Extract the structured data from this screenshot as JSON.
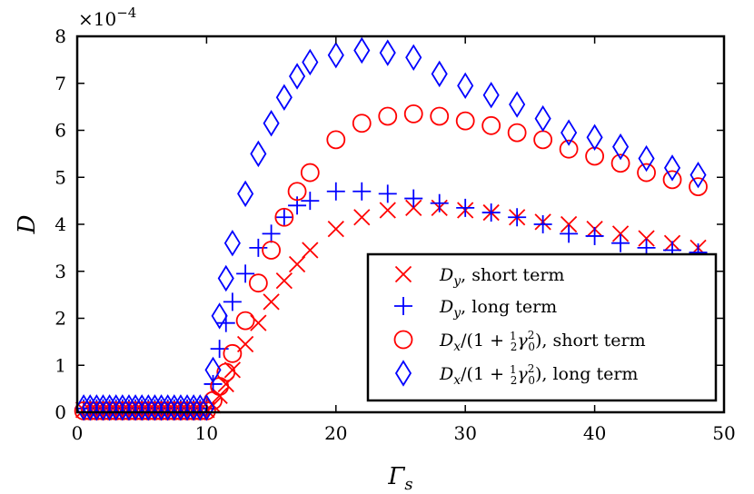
{
  "chart_data": {
    "type": "scatter",
    "title": "",
    "xlabel": "Γ",
    "xlabel_sub": "s",
    "ylabel": "D",
    "xlim": [
      0,
      50
    ],
    "ylim": [
      0,
      8
    ],
    "x_ticks": [
      "0",
      "10",
      "20",
      "30",
      "40",
      "50"
    ],
    "y_ticks": [
      "0",
      "1",
      "2",
      "3",
      "4",
      "5",
      "6",
      "7",
      "8"
    ],
    "y_multiplier": "×10",
    "y_multiplier_exp": "−4",
    "legend_position": "lower-right",
    "series": [
      {
        "name": "D_y, short term",
        "marker": "x",
        "color": "#ff0000",
        "x": [
          0.5,
          1,
          1.5,
          2,
          2.5,
          3,
          3.5,
          4,
          4.5,
          5,
          5.5,
          6,
          6.5,
          7,
          7.5,
          8,
          8.5,
          9,
          9.5,
          10,
          10.5,
          11,
          11.5,
          12,
          13,
          14,
          15,
          16,
          17,
          18,
          20,
          22,
          24,
          26,
          28,
          30,
          32,
          34,
          36,
          38,
          40,
          42,
          44,
          46,
          48
        ],
        "y": [
          0.05,
          0.05,
          0.05,
          0.05,
          0.05,
          0.05,
          0.05,
          0.05,
          0.05,
          0.05,
          0.05,
          0.05,
          0.05,
          0.05,
          0.05,
          0.05,
          0.05,
          0.05,
          0.05,
          0.05,
          0.15,
          0.35,
          0.6,
          0.9,
          1.45,
          1.9,
          2.35,
          2.8,
          3.15,
          3.45,
          3.9,
          4.15,
          4.3,
          4.35,
          4.35,
          4.3,
          4.25,
          4.15,
          4.05,
          4.0,
          3.9,
          3.8,
          3.7,
          3.6,
          3.5
        ]
      },
      {
        "name": "D_y, long term",
        "marker": "+",
        "color": "#0000ff",
        "x": [
          0.5,
          1,
          1.5,
          2,
          2.5,
          3,
          3.5,
          4,
          4.5,
          5,
          5.5,
          6,
          6.5,
          7,
          7.5,
          8,
          8.5,
          9,
          9.5,
          10,
          10.5,
          11,
          11.5,
          12,
          13,
          14,
          15,
          16,
          17,
          18,
          20,
          22,
          24,
          26,
          28,
          30,
          32,
          34,
          36,
          38,
          40,
          42,
          44,
          46,
          48
        ],
        "y": [
          0.08,
          0.08,
          0.08,
          0.08,
          0.08,
          0.08,
          0.08,
          0.08,
          0.08,
          0.08,
          0.08,
          0.08,
          0.08,
          0.08,
          0.08,
          0.08,
          0.08,
          0.08,
          0.08,
          0.08,
          0.6,
          1.35,
          1.9,
          2.35,
          2.95,
          3.5,
          3.8,
          4.15,
          4.4,
          4.5,
          4.7,
          4.7,
          4.65,
          4.55,
          4.45,
          4.35,
          4.25,
          4.15,
          4.0,
          3.8,
          3.75,
          3.6,
          3.5,
          3.45,
          3.4
        ]
      },
      {
        "name": "D_x/(1+½γ₀²), short term",
        "marker": "o",
        "color": "#ff0000",
        "x": [
          0.5,
          1,
          1.5,
          2,
          2.5,
          3,
          3.5,
          4,
          4.5,
          5,
          5.5,
          6,
          6.5,
          7,
          7.5,
          8,
          8.5,
          9,
          9.5,
          10,
          10.5,
          11,
          11.5,
          12,
          13,
          14,
          15,
          16,
          17,
          18,
          20,
          22,
          24,
          26,
          28,
          30,
          32,
          34,
          36,
          38,
          40,
          42,
          44,
          46,
          48
        ],
        "y": [
          0.03,
          0.03,
          0.03,
          0.03,
          0.03,
          0.03,
          0.03,
          0.03,
          0.03,
          0.03,
          0.03,
          0.03,
          0.03,
          0.03,
          0.03,
          0.03,
          0.03,
          0.03,
          0.03,
          0.03,
          0.25,
          0.55,
          0.85,
          1.25,
          1.95,
          2.75,
          3.45,
          4.15,
          4.7,
          5.1,
          5.8,
          6.15,
          6.3,
          6.35,
          6.3,
          6.2,
          6.1,
          5.95,
          5.8,
          5.6,
          5.45,
          5.3,
          5.1,
          4.95,
          4.8
        ]
      },
      {
        "name": "D_x/(1+½γ₀²), long term",
        "marker": "d",
        "color": "#0000ff",
        "x": [
          0.5,
          1,
          1.5,
          2,
          2.5,
          3,
          3.5,
          4,
          4.5,
          5,
          5.5,
          6,
          6.5,
          7,
          7.5,
          8,
          8.5,
          9,
          9.5,
          10,
          10.5,
          11,
          11.5,
          12,
          13,
          14,
          15,
          16,
          17,
          18,
          20,
          22,
          24,
          26,
          28,
          30,
          32,
          34,
          36,
          38,
          40,
          42,
          44,
          46,
          48
        ],
        "y": [
          0.1,
          0.1,
          0.1,
          0.1,
          0.1,
          0.1,
          0.1,
          0.1,
          0.1,
          0.1,
          0.1,
          0.1,
          0.1,
          0.1,
          0.1,
          0.1,
          0.1,
          0.1,
          0.1,
          0.1,
          0.9,
          2.05,
          2.85,
          3.6,
          4.65,
          5.5,
          6.15,
          6.7,
          7.15,
          7.45,
          7.6,
          7.7,
          7.65,
          7.55,
          7.2,
          6.95,
          6.75,
          6.55,
          6.25,
          5.95,
          5.85,
          5.65,
          5.4,
          5.2,
          5.05
        ]
      }
    ],
    "legend": [
      {
        "text": "short term",
        "symbol": "D",
        "sub": "y"
      },
      {
        "text": "long term",
        "symbol": "D",
        "sub": "y"
      },
      {
        "text": "short term",
        "symbol": "D",
        "sub": "x",
        "denom": "(1 + ",
        "frac_num": "1",
        "frac_den": "2",
        "gamma": "γ",
        "gamma_sub": "0",
        "gamma_sup": "2",
        "close": ")"
      },
      {
        "text": "long term",
        "symbol": "D",
        "sub": "x",
        "denom": "(1 + ",
        "frac_num": "1",
        "frac_den": "2",
        "gamma": "γ",
        "gamma_sub": "0",
        "gamma_sup": "2",
        "close": ")"
      }
    ]
  }
}
